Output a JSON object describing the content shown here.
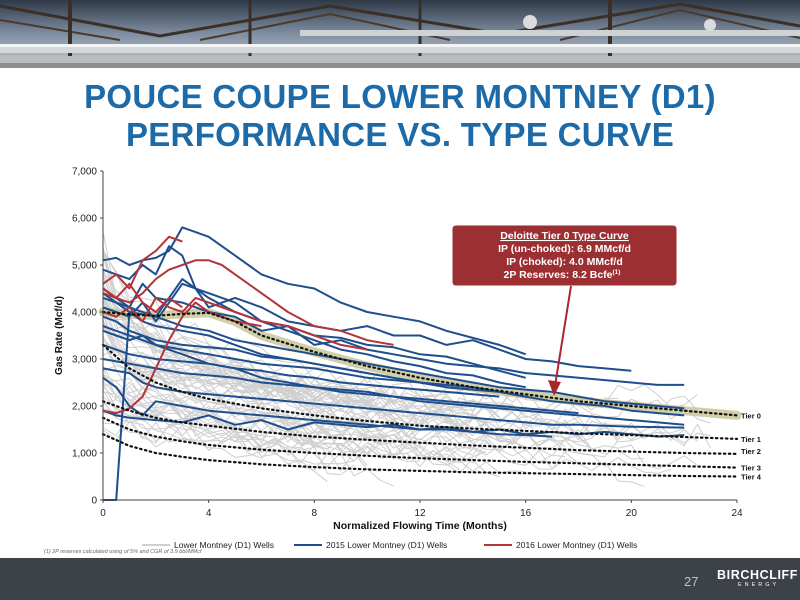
{
  "slide": {
    "title_line1": "POUCE COUPE LOWER MONTNEY (D1)",
    "title_line2": "PERFORMANCE VS. TYPE CURVE",
    "footnote": "(1) 2P reserves calculated using of 5% and CGR of 3.9 bbl/MMcf",
    "page_number": "27",
    "logo_main": "BIRCHCLIFF",
    "logo_sub": "ENERGY"
  },
  "colors": {
    "title": "#1c6aa8",
    "wells_gray": "#cfcfcf",
    "wells_2015": "#1f4e8c",
    "wells_2016": "#b3343b",
    "type_curve_band": "#c8c79a",
    "callout_bg": "#9b2f32"
  },
  "callout": {
    "heading": "Deloitte Tier 0 Type Curve",
    "line1": "IP (un-choked): 6.9 MMcf/d",
    "line2": "IP (choked): 4.0 MMcf/d",
    "line3_prefix": "2P Reserves: 8.2 Bcfe",
    "line3_sup": "(1)"
  },
  "chart_data": {
    "type": "line",
    "title": "",
    "xlabel": "Normalized Flowing Time (Months)",
    "ylabel": "Gas Rate (Mcf/d)",
    "xlim": [
      0,
      24
    ],
    "ylim": [
      0,
      7000
    ],
    "x_ticks": [
      0,
      4,
      8,
      12,
      16,
      20,
      24
    ],
    "x_tick_labels": [
      "0",
      "4",
      "8",
      "12",
      "16",
      "20",
      "24"
    ],
    "y_ticks": [
      0,
      1000,
      2000,
      3000,
      4000,
      5000,
      6000,
      7000
    ],
    "y_tick_labels": [
      "0",
      "1,000",
      "2,000",
      "3,000",
      "4,000",
      "5,000",
      "6,000",
      "7,000"
    ],
    "grid": false,
    "legend_position": "bottom",
    "legend": [
      "Lower Montney (D1) Wells",
      "2015 Lower Montney (D1) Wells",
      "2016 Lower Montney (D1) Wells"
    ],
    "type_curves": [
      {
        "name": "Tier 0",
        "x": [
          0,
          1,
          2,
          3,
          4,
          5,
          6,
          8,
          10,
          12,
          14,
          16,
          18,
          20,
          22,
          24
        ],
        "values": [
          4000,
          3950,
          3920,
          3960,
          3980,
          3800,
          3500,
          3150,
          2850,
          2600,
          2400,
          2250,
          2100,
          2000,
          1900,
          1800
        ]
      },
      {
        "name": "Tier 1",
        "x": [
          0,
          1,
          2,
          3,
          4,
          6,
          8,
          10,
          12,
          14,
          16,
          18,
          20,
          22,
          24
        ],
        "values": [
          3300,
          2800,
          2500,
          2300,
          2150,
          1950,
          1800,
          1680,
          1580,
          1520,
          1470,
          1420,
          1380,
          1340,
          1300
        ]
      },
      {
        "name": "Tier 2",
        "x": [
          0,
          1,
          2,
          3,
          4,
          6,
          8,
          10,
          12,
          14,
          16,
          18,
          20,
          22,
          24
        ],
        "values": [
          2100,
          1900,
          1750,
          1650,
          1580,
          1450,
          1350,
          1280,
          1220,
          1160,
          1110,
          1060,
          1030,
          1000,
          980
        ]
      },
      {
        "name": "Tier 3",
        "x": [
          0,
          1,
          2,
          3,
          4,
          6,
          8,
          10,
          12,
          14,
          16,
          18,
          20,
          22,
          24
        ],
        "values": [
          1750,
          1500,
          1350,
          1250,
          1170,
          1070,
          1000,
          940,
          890,
          850,
          810,
          780,
          750,
          720,
          690
        ]
      },
      {
        "name": "Tier 4",
        "x": [
          0,
          1,
          2,
          3,
          4,
          6,
          8,
          10,
          12,
          14,
          16,
          18,
          20,
          22,
          24
        ],
        "values": [
          1400,
          1150,
          1000,
          920,
          850,
          760,
          700,
          650,
          620,
          590,
          570,
          550,
          530,
          510,
          500
        ]
      }
    ],
    "series_2015": [
      {
        "x": [
          0,
          0.5,
          1,
          1.5,
          2,
          2.5,
          3,
          3.5,
          4,
          5,
          6,
          7,
          8,
          9,
          10,
          11,
          12,
          13,
          14,
          15,
          16
        ],
        "values": [
          5100,
          5150,
          5000,
          5100,
          5150,
          5300,
          5800,
          5700,
          5600,
          5200,
          4800,
          4600,
          4500,
          4200,
          4000,
          3900,
          3800,
          3600,
          3450,
          3300,
          3100
        ]
      },
      {
        "x": [
          0,
          0.5,
          1,
          1.5,
          2,
          2.5,
          3,
          3.5,
          4,
          5,
          6,
          7,
          8,
          9,
          10,
          11,
          12,
          13,
          14,
          15,
          16,
          17,
          18,
          19,
          20
        ],
        "values": [
          4900,
          4800,
          4700,
          5000,
          4800,
          5400,
          5200,
          4500,
          4100,
          4300,
          4100,
          3800,
          3700,
          3600,
          3700,
          3500,
          3500,
          3300,
          3400,
          3200,
          3000,
          2950,
          2850,
          2800,
          2750
        ]
      },
      {
        "x": [
          0,
          0.5,
          1,
          1.5,
          2,
          3,
          4,
          5,
          6,
          7,
          8,
          9,
          10,
          11,
          12,
          13,
          14,
          15,
          16,
          17,
          18,
          19,
          20,
          21,
          22
        ],
        "values": [
          4300,
          4200,
          4100,
          4600,
          4300,
          4200,
          4000,
          3900,
          3600,
          3700,
          3300,
          3400,
          3200,
          3100,
          3000,
          2900,
          2850,
          2800,
          2700,
          2650,
          2600,
          2550,
          2500,
          2450,
          2450
        ]
      },
      {
        "x": [
          0,
          0.5,
          1,
          2,
          3,
          4,
          5,
          6,
          7,
          8,
          9,
          10,
          11,
          12,
          13,
          14,
          15,
          16
        ],
        "values": [
          4400,
          4200,
          4000,
          3900,
          4700,
          4300,
          4000,
          3800,
          3700,
          3500,
          3450,
          3300,
          3250,
          3100,
          3050,
          2900,
          2750,
          2600
        ]
      },
      {
        "x": [
          0,
          0.5,
          1,
          1.5,
          2,
          3,
          4,
          5,
          6,
          7,
          8,
          9,
          10,
          11,
          12,
          13,
          14,
          15,
          16
        ],
        "values": [
          4100,
          4000,
          3900,
          4200,
          3800,
          4600,
          4400,
          4200,
          3800,
          3600,
          3400,
          3200,
          3100,
          2950,
          2850,
          2700,
          2650,
          2500,
          2400
        ]
      },
      {
        "x": [
          0,
          0.5,
          1,
          2,
          3,
          4,
          5,
          6,
          7,
          8,
          9,
          10,
          11,
          12,
          13,
          14,
          15,
          16
        ],
        "values": [
          3900,
          3800,
          3600,
          3400,
          3300,
          3250,
          3200,
          3050,
          3000,
          2900,
          2800,
          2700,
          2600,
          2500,
          2450,
          2400,
          2300,
          2200
        ]
      },
      {
        "x": [
          0,
          0.5,
          1,
          1.5,
          2,
          3,
          4,
          5,
          6,
          7,
          8,
          9,
          10,
          11,
          12,
          13,
          14,
          15,
          16,
          17,
          18,
          19,
          20,
          21,
          22
        ],
        "values": [
          3600,
          3500,
          3400,
          3500,
          3300,
          3200,
          3100,
          3000,
          2900,
          2850,
          2800,
          2700,
          2600,
          2550,
          2500,
          2400,
          2350,
          2300,
          2200,
          2100,
          2050,
          2000,
          1900,
          1850,
          1800
        ]
      },
      {
        "x": [
          0,
          0.5,
          1,
          2,
          3,
          4,
          5,
          6,
          7,
          8,
          9,
          10,
          11,
          12,
          13,
          14,
          15
        ],
        "values": [
          3300,
          3200,
          3100,
          3000,
          2950,
          2900,
          2800,
          2750,
          2650,
          2600,
          2500,
          2450,
          2400,
          2350,
          2300,
          2250,
          2200
        ]
      },
      {
        "x": [
          0,
          0.5,
          1,
          2,
          3,
          4,
          5,
          6,
          7,
          8,
          9,
          10,
          11,
          12,
          13,
          14,
          15,
          16,
          17,
          18
        ],
        "values": [
          3000,
          2950,
          2900,
          2800,
          2700,
          2650,
          2600,
          2500,
          2450,
          2400,
          2350,
          2300,
          2200,
          2150,
          2100,
          2050,
          2000,
          1950,
          1900,
          1850
        ]
      },
      {
        "x": [
          0,
          0.5,
          1,
          1.5,
          2,
          3,
          4,
          5,
          6,
          7,
          8,
          9,
          10,
          11,
          12,
          13,
          14,
          15,
          16,
          17,
          18,
          19,
          20,
          21,
          22
        ],
        "values": [
          2800,
          2750,
          2700,
          2500,
          2400,
          2300,
          2250,
          2200,
          2150,
          2100,
          2050,
          2000,
          1950,
          1900,
          1850,
          1800,
          1750,
          1700,
          1650,
          1600,
          1600,
          1580,
          1560,
          1550,
          1540
        ]
      },
      {
        "x": [
          0,
          0.5,
          1,
          1.5,
          2,
          3,
          4,
          5,
          6,
          7,
          8,
          9,
          10,
          11,
          12,
          13,
          14,
          15,
          16,
          17
        ],
        "values": [
          2600,
          2400,
          2000,
          1800,
          2100,
          2000,
          1900,
          1850,
          1800,
          1750,
          1700,
          1650,
          1600,
          1550,
          1500,
          1500,
          1450,
          1400,
          1380,
          1350
        ]
      },
      {
        "x": [
          0,
          0.5,
          1,
          1.5,
          2,
          3,
          4,
          5,
          6,
          7,
          8,
          9,
          10,
          11,
          12,
          13,
          14
        ],
        "values": [
          0,
          0,
          4000,
          3800,
          3700,
          3600,
          3500,
          3300,
          3100,
          3000,
          2900,
          2800,
          2700,
          2600,
          2500,
          2400,
          2350
        ]
      },
      {
        "x": [
          0,
          0.5,
          1,
          2,
          3,
          4,
          5,
          6,
          7,
          8,
          9,
          10,
          11,
          12,
          13,
          14,
          15,
          16,
          17,
          18,
          19,
          20,
          21,
          22
        ],
        "values": [
          1900,
          1800,
          1750,
          1700,
          1650,
          1800,
          1600,
          1700,
          1500,
          1650,
          1600,
          1550,
          1600,
          1500,
          1550,
          1450,
          1500,
          1400,
          1450,
          1400,
          1450,
          1400,
          1350,
          1380
        ]
      },
      {
        "x": [
          0,
          0.5,
          1,
          2,
          3,
          4,
          5,
          6,
          7,
          8,
          9,
          10,
          11,
          12,
          13,
          14,
          15,
          16,
          17,
          18,
          19,
          20,
          21,
          22
        ],
        "values": [
          4500,
          4300,
          4100,
          3900,
          3700,
          3600,
          3400,
          3300,
          3200,
          3100,
          3000,
          2900,
          2800,
          2700,
          2600,
          2500,
          2400,
          2350,
          2300,
          2200,
          2100,
          2050,
          2000,
          1950
        ]
      },
      {
        "x": [
          0,
          1,
          2,
          3,
          4,
          5,
          6,
          7,
          8,
          9,
          10,
          11,
          12,
          13,
          14,
          15,
          16,
          17,
          18,
          19,
          20,
          21,
          22
        ],
        "values": [
          3700,
          3500,
          3300,
          3100,
          2900,
          2800,
          2600,
          2500,
          2400,
          2300,
          2250,
          2200,
          2100,
          2050,
          2000,
          1950,
          1900,
          1850,
          1800,
          1750,
          1700,
          1650,
          1600
        ]
      }
    ],
    "series_2016": [
      {
        "x": [
          0,
          0.5,
          1,
          1.5,
          2,
          2.5,
          3
        ],
        "values": [
          4600,
          4800,
          4500,
          5100,
          5300,
          5600,
          5500
        ]
      },
      {
        "x": [
          0,
          0.5,
          1,
          1.5,
          2,
          2.5,
          3,
          3.5,
          4,
          4.5,
          5,
          6,
          7,
          8,
          9,
          10,
          11
        ],
        "values": [
          4500,
          4300,
          4200,
          4400,
          4700,
          4900,
          5000,
          5100,
          5100,
          5000,
          4800,
          4400,
          4000,
          3700,
          3600,
          3400,
          3300
        ]
      },
      {
        "x": [
          0,
          0.5,
          1,
          1.5,
          2,
          2.5,
          3,
          3.5,
          4,
          5,
          6,
          7,
          8,
          9,
          10
        ],
        "values": [
          4000,
          3900,
          4100,
          3800,
          4300,
          4100,
          4000,
          4300,
          4200,
          4000,
          3800,
          3700,
          3500,
          3300,
          3200
        ]
      },
      {
        "x": [
          0,
          0.5,
          1,
          1.5,
          2,
          2.5,
          3,
          3.5,
          4,
          5,
          6
        ],
        "values": [
          1900,
          1850,
          1950,
          2200,
          2800,
          3400,
          3900,
          4200,
          4000,
          3800,
          3700
        ]
      },
      {
        "x": [
          0,
          0.5,
          1,
          1.5,
          2,
          2.5,
          3
        ],
        "values": [
          4400,
          4300,
          4600,
          4200,
          4000,
          4300,
          4100
        ]
      }
    ]
  }
}
